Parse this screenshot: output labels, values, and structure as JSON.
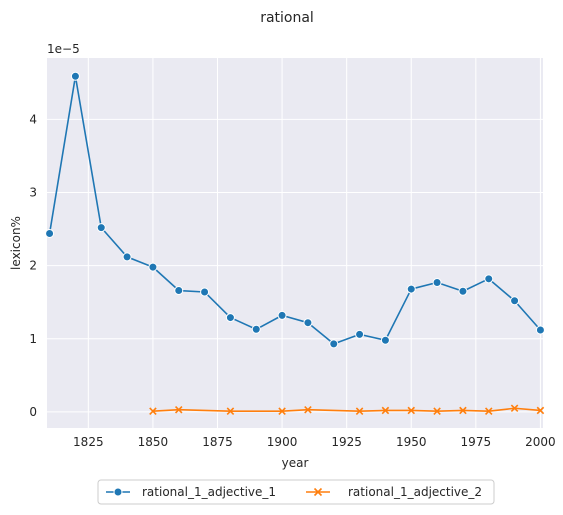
{
  "chart_data": {
    "type": "line",
    "title": "rational",
    "xlabel": "year",
    "ylabel": "lexicon%",
    "y_scale_label": "1e−5",
    "xlim": [
      1809,
      2001
    ],
    "ylim": [
      -0.22,
      4.84
    ],
    "x_ticks": [
      1825,
      1850,
      1875,
      1900,
      1925,
      1950,
      1975,
      2000
    ],
    "y_ticks": [
      0,
      1,
      2,
      3,
      4
    ],
    "grid": true,
    "legend_placement": "bottom-center",
    "series": [
      {
        "name": "rational_1_adjective_1",
        "color": "#1f77b4",
        "marker": "circle",
        "x": [
          1810,
          1820,
          1830,
          1840,
          1850,
          1860,
          1870,
          1880,
          1890,
          1900,
          1910,
          1920,
          1930,
          1940,
          1950,
          1960,
          1970,
          1980,
          1990,
          2000
        ],
        "y": [
          2.44,
          4.59,
          2.52,
          2.12,
          1.98,
          1.66,
          1.64,
          1.29,
          1.13,
          1.32,
          1.22,
          0.93,
          1.06,
          0.98,
          1.68,
          1.77,
          1.65,
          1.82,
          1.52,
          1.12
        ]
      },
      {
        "name": "rational_1_adjective_2",
        "color": "#ff7f0e",
        "marker": "x",
        "x": [
          1850,
          1860,
          1880,
          1900,
          1910,
          1930,
          1940,
          1950,
          1960,
          1970,
          1980,
          1990,
          2000
        ],
        "y": [
          0.01,
          0.03,
          0.01,
          0.01,
          0.03,
          0.01,
          0.02,
          0.02,
          0.01,
          0.02,
          0.01,
          0.05,
          0.02
        ]
      }
    ]
  }
}
